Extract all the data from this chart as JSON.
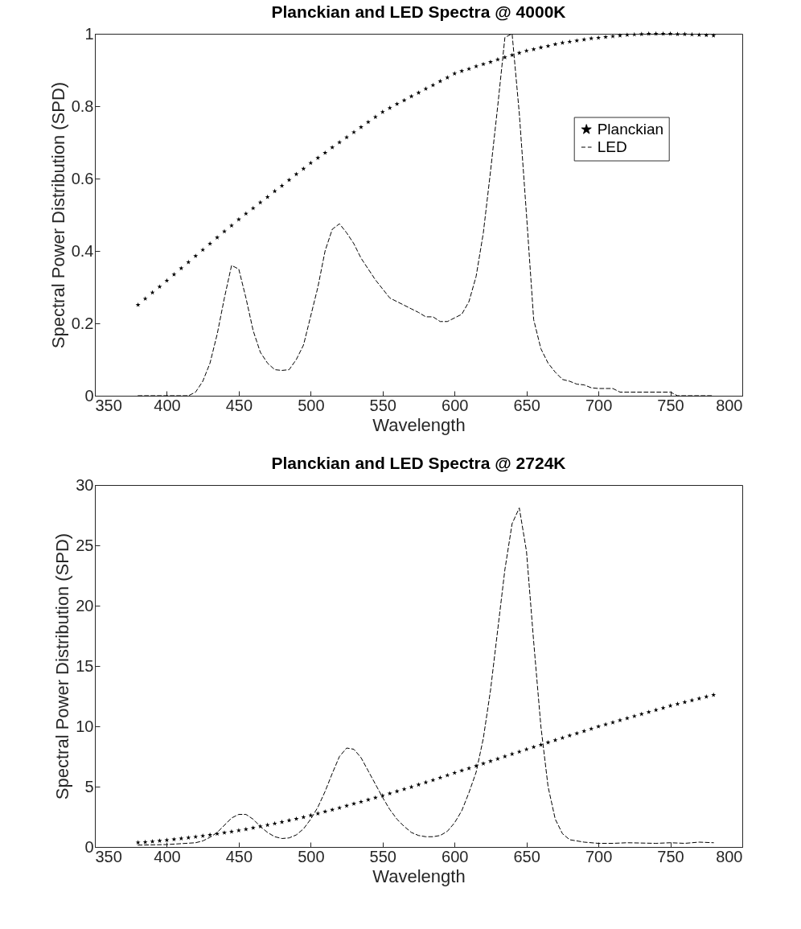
{
  "chart_data": [
    {
      "type": "line",
      "title": "Planckian and LED Spectra @ 4000K",
      "xlabel": "Wavelength",
      "ylabel": "Spectral Power Distribution (SPD)",
      "xlim": [
        350,
        800
      ],
      "xticks": [
        350,
        400,
        450,
        500,
        550,
        600,
        650,
        700,
        750,
        800
      ],
      "ylim": [
        0,
        1
      ],
      "yticks": [
        0,
        0.2,
        0.4,
        0.6,
        0.8,
        1
      ],
      "grid": false,
      "legend": "right",
      "series": [
        {
          "name": "Planckian",
          "type": "scatter",
          "marker": "star",
          "color": "#000000",
          "x": [
            380,
            385,
            390,
            395,
            400,
            405,
            410,
            415,
            420,
            425,
            430,
            435,
            440,
            445,
            450,
            455,
            460,
            465,
            470,
            475,
            480,
            485,
            490,
            495,
            500,
            505,
            510,
            515,
            520,
            525,
            530,
            535,
            540,
            545,
            550,
            555,
            560,
            565,
            570,
            575,
            580,
            585,
            590,
            595,
            600,
            605,
            610,
            615,
            620,
            625,
            630,
            635,
            640,
            645,
            650,
            655,
            660,
            665,
            670,
            675,
            680,
            685,
            690,
            695,
            700,
            705,
            710,
            715,
            720,
            725,
            730,
            735,
            740,
            745,
            750,
            755,
            760,
            765,
            770,
            775,
            780
          ],
          "values": [
            0.251,
            0.268,
            0.285,
            0.301,
            0.318,
            0.335,
            0.352,
            0.369,
            0.386,
            0.403,
            0.42,
            0.437,
            0.454,
            0.47,
            0.487,
            0.503,
            0.518,
            0.534,
            0.549,
            0.565,
            0.58,
            0.596,
            0.612,
            0.627,
            0.643,
            0.657,
            0.671,
            0.686,
            0.7,
            0.714,
            0.728,
            0.742,
            0.756,
            0.77,
            0.784,
            0.795,
            0.806,
            0.816,
            0.827,
            0.837,
            0.848,
            0.858,
            0.869,
            0.879,
            0.89,
            0.897,
            0.903,
            0.91,
            0.916,
            0.922,
            0.929,
            0.935,
            0.941,
            0.947,
            0.953,
            0.957,
            0.962,
            0.966,
            0.971,
            0.975,
            0.978,
            0.981,
            0.984,
            0.987,
            0.989,
            0.991,
            0.993,
            0.995,
            0.997,
            0.998,
            0.999,
            1,
            1,
            1,
            1,
            0.999,
            0.999,
            0.998,
            0.997,
            0.996,
            0.995
          ]
        },
        {
          "name": "LED",
          "line_style": "dashed",
          "color": "#000000",
          "x": [
            380,
            415,
            420,
            425,
            430,
            435,
            440,
            445,
            450,
            455,
            460,
            465,
            470,
            475,
            480,
            485,
            490,
            495,
            500,
            505,
            510,
            515,
            520,
            525,
            530,
            535,
            540,
            545,
            550,
            555,
            560,
            565,
            570,
            575,
            580,
            585,
            590,
            595,
            600,
            605,
            610,
            615,
            620,
            625,
            630,
            635,
            640,
            645,
            650,
            655,
            660,
            665,
            670,
            675,
            680,
            685,
            690,
            695,
            700,
            705,
            710,
            715,
            720,
            750,
            755,
            780
          ],
          "values": [
            0,
            0,
            0.01,
            0.04,
            0.09,
            0.17,
            0.27,
            0.36,
            0.35,
            0.27,
            0.18,
            0.12,
            0.09,
            0.072,
            0.07,
            0.072,
            0.1,
            0.14,
            0.22,
            0.3,
            0.4,
            0.46,
            0.475,
            0.45,
            0.42,
            0.38,
            0.35,
            0.32,
            0.295,
            0.27,
            0.26,
            0.25,
            0.24,
            0.23,
            0.218,
            0.218,
            0.205,
            0.205,
            0.215,
            0.225,
            0.26,
            0.33,
            0.45,
            0.62,
            0.8,
            0.99,
            1,
            0.78,
            0.5,
            0.21,
            0.13,
            0.09,
            0.065,
            0.045,
            0.04,
            0.032,
            0.03,
            0.022,
            0.02,
            0.02,
            0.02,
            0.01,
            0.01,
            0.01,
            0,
            0
          ]
        }
      ]
    },
    {
      "type": "line",
      "title": "Planckian and LED Spectra @ 2724K",
      "xlabel": "Wavelength",
      "ylabel": "Spectral Power Distribution (SPD)",
      "xlim": [
        350,
        800
      ],
      "xticks": [
        350,
        400,
        450,
        500,
        550,
        600,
        650,
        700,
        750,
        800
      ],
      "ylim": [
        0,
        30
      ],
      "yticks": [
        0,
        5,
        10,
        15,
        20,
        25,
        30
      ],
      "grid": false,
      "legend": "right",
      "series": [
        {
          "name": "Planckian",
          "type": "scatter",
          "marker": "star",
          "color": "#000000",
          "x": [
            380,
            385,
            390,
            395,
            400,
            405,
            410,
            415,
            420,
            425,
            430,
            435,
            440,
            445,
            450,
            455,
            460,
            465,
            470,
            475,
            480,
            485,
            490,
            495,
            500,
            505,
            510,
            515,
            520,
            525,
            530,
            535,
            540,
            545,
            550,
            555,
            560,
            565,
            570,
            575,
            580,
            585,
            590,
            595,
            600,
            605,
            610,
            615,
            620,
            625,
            630,
            635,
            640,
            645,
            650,
            655,
            660,
            665,
            670,
            675,
            680,
            685,
            690,
            695,
            700,
            705,
            710,
            715,
            720,
            725,
            730,
            735,
            740,
            745,
            750,
            755,
            760,
            765,
            770,
            775,
            780
          ],
          "values": [
            0.37,
            0.4,
            0.45,
            0.51,
            0.57,
            0.63,
            0.7,
            0.77,
            0.84,
            0.92,
            1,
            1.09,
            1.18,
            1.27,
            1.37,
            1.47,
            1.58,
            1.7,
            1.82,
            1.94,
            2.07,
            2.2,
            2.33,
            2.47,
            2.62,
            2.77,
            2.93,
            3.08,
            3.24,
            3.41,
            3.58,
            3.74,
            3.91,
            4.08,
            4.25,
            4.43,
            4.61,
            4.79,
            4.97,
            5.16,
            5.35,
            5.54,
            5.74,
            5.94,
            6.14,
            6.33,
            6.52,
            6.72,
            6.91,
            7.11,
            7.3,
            7.5,
            7.7,
            7.89,
            8.09,
            8.28,
            8.47,
            8.66,
            8.85,
            9.04,
            9.23,
            9.41,
            9.6,
            9.79,
            9.98,
            10.15,
            10.32,
            10.5,
            10.67,
            10.84,
            11.01,
            11.18,
            11.35,
            11.52,
            11.7,
            11.85,
            12,
            12.15,
            12.3,
            12.45,
            12.6
          ]
        },
        {
          "name": "LED",
          "line_style": "dashed",
          "color": "#000000",
          "x": [
            380,
            400,
            420,
            425,
            430,
            435,
            440,
            445,
            450,
            455,
            460,
            465,
            470,
            475,
            480,
            485,
            490,
            495,
            500,
            505,
            510,
            515,
            520,
            525,
            530,
            535,
            540,
            545,
            550,
            555,
            560,
            565,
            570,
            575,
            580,
            585,
            590,
            595,
            600,
            605,
            610,
            615,
            620,
            625,
            630,
            635,
            640,
            645,
            650,
            655,
            660,
            665,
            670,
            675,
            680,
            690,
            700,
            710,
            720,
            740,
            750,
            760,
            770,
            780
          ],
          "values": [
            0.15,
            0.2,
            0.35,
            0.5,
            0.8,
            1.2,
            1.8,
            2.4,
            2.7,
            2.7,
            2.3,
            1.7,
            1.2,
            0.85,
            0.7,
            0.75,
            1,
            1.5,
            2.3,
            3.3,
            4.6,
            6.1,
            7.5,
            8.2,
            8.1,
            7.4,
            6.3,
            5.2,
            4.1,
            3.1,
            2.3,
            1.7,
            1.2,
            0.95,
            0.85,
            0.85,
            0.95,
            1.3,
            2,
            3,
            4.5,
            6.2,
            9,
            13,
            18,
            23,
            26.8,
            28.1,
            24.5,
            17,
            10,
            5,
            2.3,
            1.1,
            0.6,
            0.4,
            0.3,
            0.3,
            0.35,
            0.3,
            0.35,
            0.3,
            0.4,
            0.35
          ]
        }
      ]
    }
  ]
}
